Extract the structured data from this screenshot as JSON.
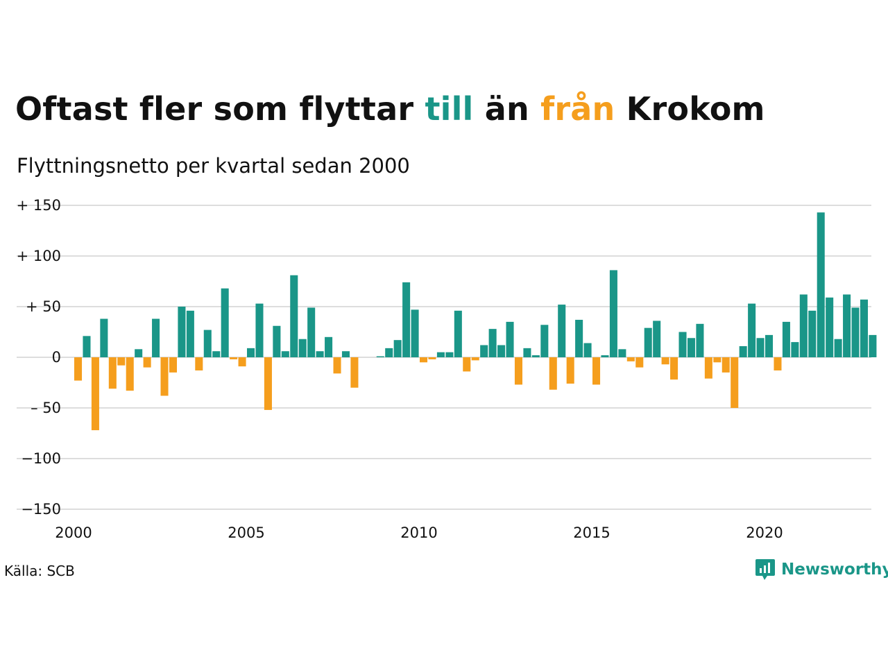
{
  "title": {
    "part1": "Oftast fler som flyttar ",
    "word_in": "till",
    "part2": " än ",
    "word_out": "från",
    "part3": " Krokom"
  },
  "subtitle": "Flyttningsnetto per kvartal sedan 2000",
  "source": "Källa: SCB",
  "logo": {
    "text": "Newsworthy",
    "icon": "newsworthy-chart-bubble-icon"
  },
  "colors": {
    "positive": "#1a9688",
    "negative": "#f59e1d",
    "grid": "#dddddd",
    "text": "#111111"
  },
  "chart_data": {
    "type": "bar",
    "x_start_year": 2000,
    "periods_per_year": 4,
    "ylim": [
      -150,
      150
    ],
    "yticks": [
      150,
      100,
      50,
      0,
      -50,
      -100,
      -150
    ],
    "ytick_labels": [
      "+ 150",
      "+ 100",
      "+  50",
      "0",
      "– 50",
      "−100",
      "−150"
    ],
    "xticks": [
      "2000",
      "2005",
      "2010",
      "2015",
      "2020"
    ],
    "grid": "horizontal",
    "values": [
      -23,
      21,
      -72,
      38,
      -31,
      -8,
      -33,
      8,
      -10,
      38,
      -38,
      -15,
      50,
      46,
      -13,
      27,
      6,
      68,
      -2,
      -9,
      9,
      53,
      -52,
      31,
      6,
      81,
      18,
      49,
      6,
      20,
      -16,
      6,
      -30,
      0,
      0,
      1,
      9,
      17,
      74,
      47,
      -5,
      -2,
      5,
      5,
      46,
      -14,
      -3,
      12,
      28,
      12,
      35,
      -27,
      9,
      2,
      32,
      -32,
      52,
      -26,
      37,
      14,
      -27,
      2,
      86,
      8,
      -4,
      -10,
      29,
      36,
      -7,
      -22,
      25,
      19,
      33,
      -21,
      -5,
      -15,
      -50,
      11,
      53,
      19,
      22,
      -13,
      35,
      15,
      62,
      46,
      143,
      59,
      18,
      62,
      49,
      57,
      22
    ]
  }
}
